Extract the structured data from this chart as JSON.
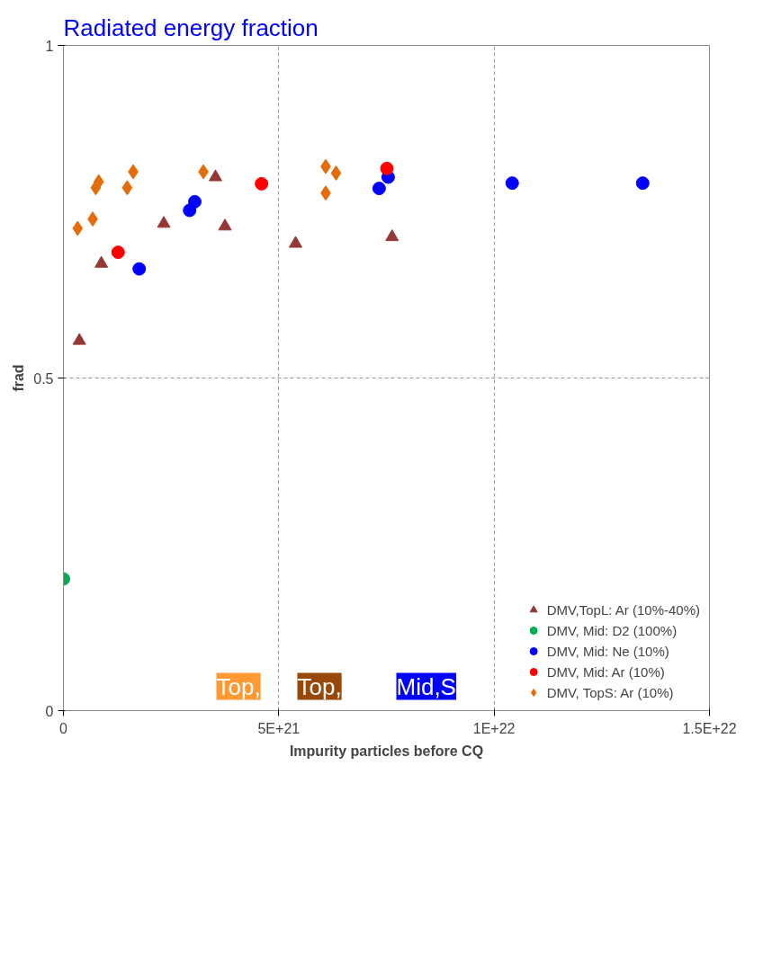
{
  "chart_data": {
    "type": "scatter",
    "title": "Radiated energy fraction",
    "xlabel": "Impurity particles before CQ",
    "ylabel": "frad",
    "xlim": [
      0,
      1.5e+22
    ],
    "ylim": [
      0,
      1
    ],
    "xticks": [
      0,
      {
        "value": 5e+21,
        "label": "5E+21"
      },
      {
        "value": 1e+22,
        "label": "1E+22"
      },
      {
        "value": 1.5e+22,
        "label": "1.5E+22"
      }
    ],
    "yticks": [
      0,
      0.5,
      1
    ],
    "grid": true,
    "legend": "bottom right",
    "annotations": [
      "Top,",
      "Top,",
      "Mid,S"
    ],
    "series": [
      {
        "name": "DMV,TopL: Ar (10%-40%)",
        "color": "#953735",
        "marker": "triangle",
        "x": [
          3.7e+20,
          8.8e+20,
          2.33e+21,
          3.53e+21,
          3.75e+21,
          5.39e+21,
          7.63e+21
        ],
        "values": [
          0.556,
          0.672,
          0.732,
          0.802,
          0.728,
          0.702,
          0.712
        ]
      },
      {
        "name": "DMV, Mid: D2 (100%)",
        "color": "#00b050",
        "marker": "circle",
        "x": [
          0
        ],
        "values": [
          0.198
        ]
      },
      {
        "name": "DMV, Mid: Ne (10%)",
        "color": "#0000ff",
        "marker": "circle",
        "x": [
          1.76e+21,
          3.05e+21,
          2.93e+21,
          7.54e+21,
          7.33e+21,
          1.042e+22,
          1.345e+22
        ],
        "values": [
          0.664,
          0.765,
          0.752,
          0.802,
          0.785,
          0.793,
          0.793
        ]
      },
      {
        "name": "DMV, Mid: Ar (10%)",
        "color": "#ff0000",
        "marker": "circle",
        "x": [
          1.27e+21,
          4.6e+21,
          7.51e+21
        ],
        "values": [
          0.689,
          0.792,
          0.815
        ]
      },
      {
        "name": "DMV, TopS: Ar (10%)",
        "color": "#e46c0a",
        "marker": "diamond",
        "x": [
          3.3e+20,
          6.8e+20,
          8.2e+20,
          7.5e+20,
          1.48e+21,
          1.62e+21,
          3.25e+21,
          6.09e+21,
          6.33e+21,
          6.09e+21
        ],
        "values": [
          0.725,
          0.739,
          0.795,
          0.786,
          0.786,
          0.81,
          0.81,
          0.818,
          0.808,
          0.778
        ]
      }
    ]
  }
}
